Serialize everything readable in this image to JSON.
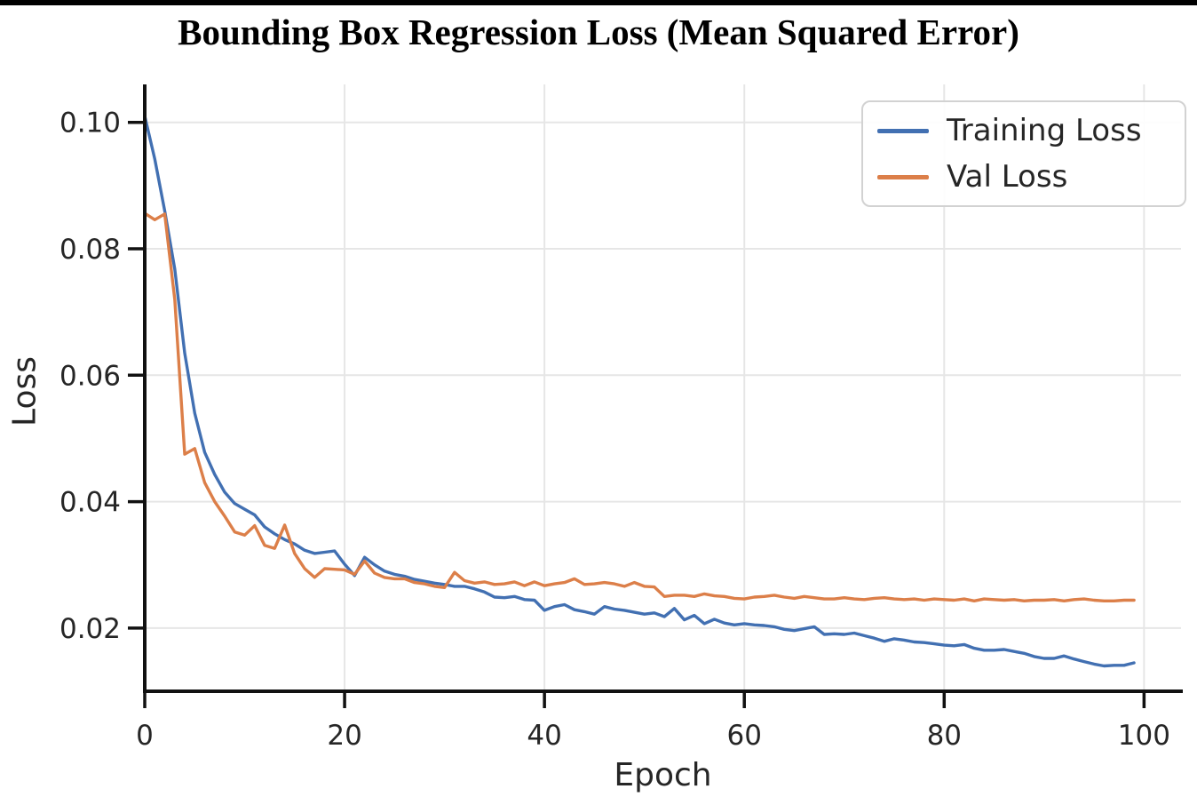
{
  "window": {
    "background": "#ffffff",
    "top_border_color": "#000000"
  },
  "chart_data": {
    "type": "line",
    "title": "Bounding Box Regression Loss (Mean Squared Error)",
    "xlabel": "Epoch",
    "ylabel": "Loss",
    "xlim": [
      0,
      103.7
    ],
    "ylim": [
      0.01,
      0.106
    ],
    "x_ticks": [
      0,
      20,
      40,
      60,
      80,
      100
    ],
    "x_tick_labels": [
      "0",
      "20",
      "40",
      "60",
      "80",
      "100"
    ],
    "y_ticks": [
      0.02,
      0.04,
      0.06,
      0.08,
      0.1
    ],
    "y_tick_labels": [
      "0.02",
      "0.04",
      "0.06",
      "0.08",
      "0.10"
    ],
    "grid": true,
    "grid_color": "#e6e6e6",
    "spine_color": "#111111",
    "legend": {
      "position": "upper right",
      "items": [
        {
          "label": "Training Loss",
          "color": "#4270B2"
        },
        {
          "label": "Val Loss",
          "color": "#DC7F49"
        }
      ]
    },
    "x_start": 0,
    "x_step": 1,
    "series": [
      {
        "name": "Training Loss",
        "color": "#4270B2",
        "values": [
          0.101,
          0.0942,
          0.086,
          0.0768,
          0.0635,
          0.054,
          0.0478,
          0.0443,
          0.0415,
          0.0397,
          0.0388,
          0.0379,
          0.036,
          0.0349,
          0.034,
          0.0333,
          0.0323,
          0.0318,
          0.032,
          0.0322,
          0.0301,
          0.0283,
          0.0312,
          0.03,
          0.029,
          0.0285,
          0.0282,
          0.0277,
          0.0274,
          0.0271,
          0.0269,
          0.0266,
          0.0266,
          0.0262,
          0.0257,
          0.0249,
          0.0248,
          0.025,
          0.0245,
          0.0244,
          0.0228,
          0.0234,
          0.0237,
          0.0229,
          0.0226,
          0.0222,
          0.0234,
          0.023,
          0.0228,
          0.0225,
          0.0222,
          0.0224,
          0.0218,
          0.0231,
          0.0213,
          0.022,
          0.0207,
          0.0214,
          0.0208,
          0.0205,
          0.0207,
          0.0205,
          0.0204,
          0.0202,
          0.0198,
          0.0196,
          0.0199,
          0.0202,
          0.019,
          0.0191,
          0.019,
          0.0192,
          0.0188,
          0.0184,
          0.0179,
          0.0183,
          0.0181,
          0.0178,
          0.0177,
          0.0175,
          0.0173,
          0.0172,
          0.0174,
          0.0168,
          0.0165,
          0.0165,
          0.0166,
          0.0163,
          0.016,
          0.0155,
          0.0152,
          0.0152,
          0.0156,
          0.0151,
          0.0147,
          0.0143,
          0.014,
          0.0141,
          0.0141,
          0.0145
        ]
      },
      {
        "name": "Val Loss",
        "color": "#DC7F49",
        "values": [
          0.0856,
          0.0846,
          0.0855,
          0.072,
          0.0475,
          0.0484,
          0.043,
          0.04,
          0.0377,
          0.0352,
          0.0347,
          0.0362,
          0.0331,
          0.0326,
          0.0363,
          0.0318,
          0.0294,
          0.028,
          0.0294,
          0.0293,
          0.0292,
          0.0285,
          0.0306,
          0.0287,
          0.028,
          0.0278,
          0.0278,
          0.0272,
          0.027,
          0.0266,
          0.0264,
          0.0288,
          0.0275,
          0.0271,
          0.0273,
          0.0269,
          0.027,
          0.0273,
          0.0267,
          0.0273,
          0.0267,
          0.027,
          0.0272,
          0.0278,
          0.0269,
          0.027,
          0.0272,
          0.027,
          0.0266,
          0.0272,
          0.0266,
          0.0265,
          0.025,
          0.0252,
          0.0252,
          0.025,
          0.0254,
          0.0251,
          0.025,
          0.0247,
          0.0246,
          0.0249,
          0.025,
          0.0252,
          0.0249,
          0.0247,
          0.025,
          0.0248,
          0.0246,
          0.0246,
          0.0248,
          0.0246,
          0.0245,
          0.0247,
          0.0248,
          0.0246,
          0.0245,
          0.0246,
          0.0244,
          0.0246,
          0.0245,
          0.0244,
          0.0246,
          0.0243,
          0.0246,
          0.0245,
          0.0244,
          0.0245,
          0.0243,
          0.0244,
          0.0244,
          0.0245,
          0.0243,
          0.0245,
          0.0246,
          0.0244,
          0.0243,
          0.0243,
          0.0244,
          0.0244
        ]
      }
    ]
  }
}
